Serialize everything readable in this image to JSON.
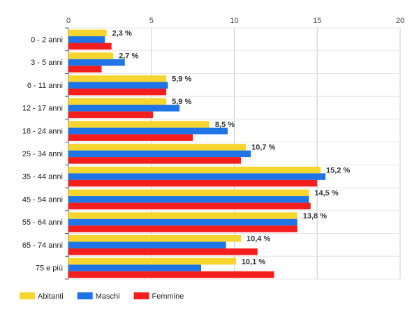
{
  "chart_data": {
    "type": "bar",
    "orientation": "horizontal",
    "categories": [
      "0 - 2 anni",
      "3 - 5 anni",
      "6 - 11 anni",
      "12 - 17 anni",
      "18 - 24 anni",
      "25 - 34 anni",
      "35 - 44 anni",
      "45 - 54 anni",
      "55 - 64 anni",
      "65 - 74 anni",
      "75 e più"
    ],
    "series": [
      {
        "name": "Abitanti",
        "color": "#f7d52f",
        "values": [
          2.3,
          2.7,
          5.9,
          5.9,
          8.5,
          10.7,
          15.2,
          14.5,
          13.8,
          10.4,
          10.1
        ]
      },
      {
        "name": "Maschi",
        "color": "#1f74e6",
        "values": [
          2.2,
          3.4,
          6.0,
          6.7,
          9.6,
          11.0,
          15.5,
          14.5,
          13.8,
          9.5,
          8.0
        ]
      },
      {
        "name": "Femmine",
        "color": "#f41e1e",
        "values": [
          2.6,
          2.0,
          5.9,
          5.1,
          7.5,
          10.4,
          15.0,
          14.6,
          13.8,
          11.4,
          12.4
        ]
      }
    ],
    "data_labels": [
      "2,3 %",
      "2,7 %",
      "5,9 %",
      "5,9 %",
      "8,5 %",
      "10,7 %",
      "15,2 %",
      "14,5 %",
      "13,8 %",
      "10,4 %",
      "10,1 %"
    ],
    "xlim": [
      0,
      20
    ],
    "xticks": [
      0,
      5,
      10,
      15,
      20
    ],
    "xtick_labels": [
      "0",
      "5",
      "10",
      "15",
      "20"
    ],
    "axis_position": "top",
    "grid": true,
    "legend_position": "bottom-left",
    "title": "",
    "xlabel": "",
    "ylabel": ""
  }
}
